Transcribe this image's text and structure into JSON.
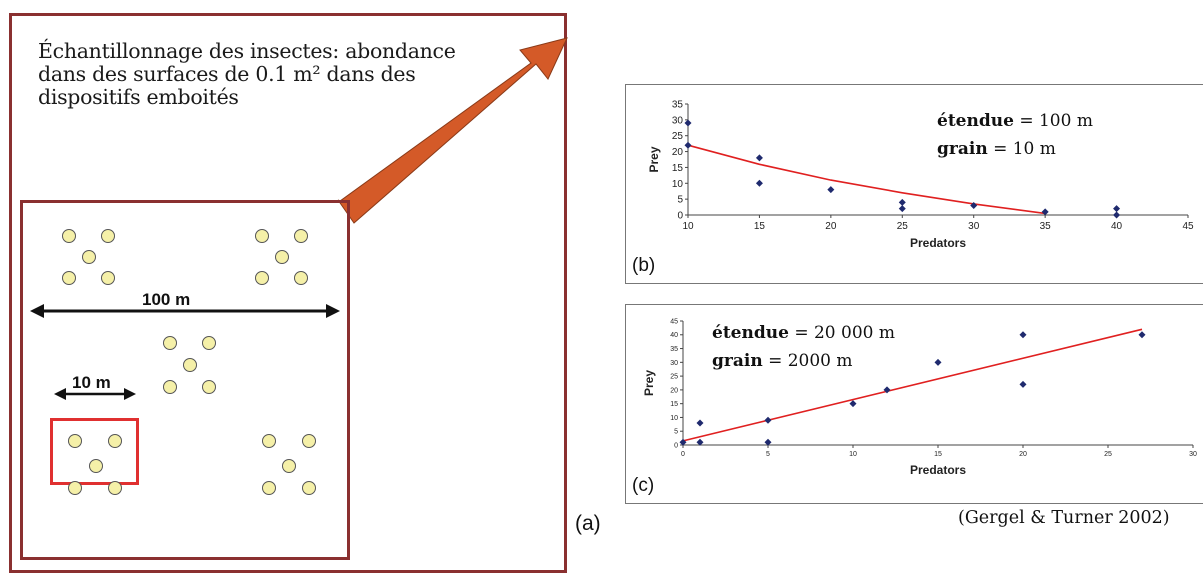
{
  "figure": {
    "intro_text": "Échantillonnage des insectes: abondance dans des surfaces de 0.1 m² dans des dispositifs emboités",
    "extent_label": "100 m",
    "grain_label": "10 m",
    "panel_a_label": "(a)",
    "citation": "(Gergel & Turner 2002)",
    "colors": {
      "frame": "#8a3030",
      "quadrat": "#e03030",
      "arrow": "#d45a28",
      "circle_fill": "#f5f0a8",
      "point": "#1f2a6e",
      "trend": "#e02020"
    }
  },
  "panel_b": {
    "letter": "(b)",
    "etendue_word": "étendue",
    "etendue_value": " = 100 m",
    "grain_word": "grain",
    "grain_value": " = 10 m"
  },
  "panel_c": {
    "letter": "(c)",
    "etendue_word": "étendue",
    "etendue_value": " = 20 000 m",
    "grain_word": "grain",
    "grain_value": " = 2000 m"
  },
  "chart_data": [
    {
      "type": "scatter",
      "xlabel": "Predators",
      "ylabel": "Prey",
      "xlim": [
        10,
        45
      ],
      "ylim": [
        0,
        35
      ],
      "xticks": [
        10,
        15,
        20,
        25,
        30,
        35,
        40,
        45
      ],
      "yticks": [
        0,
        5,
        10,
        15,
        20,
        25,
        30,
        35
      ],
      "points": [
        [
          10,
          29
        ],
        [
          10,
          22
        ],
        [
          15,
          18
        ],
        [
          15,
          10
        ],
        [
          20,
          8
        ],
        [
          25,
          4
        ],
        [
          25,
          2
        ],
        [
          30,
          3
        ],
        [
          35,
          1
        ],
        [
          40,
          2
        ],
        [
          40,
          0
        ]
      ],
      "trendline": {
        "kind": "curve",
        "points": [
          [
            10,
            22
          ],
          [
            15,
            16
          ],
          [
            20,
            11
          ],
          [
            25,
            7
          ],
          [
            30,
            3.5
          ],
          [
            35,
            0.5
          ]
        ]
      }
    },
    {
      "type": "scatter",
      "xlabel": "Predators",
      "ylabel": "Prey",
      "xlim": [
        0,
        30
      ],
      "ylim": [
        0,
        45
      ],
      "xticks": [
        0,
        5,
        10,
        15,
        20,
        25,
        30
      ],
      "yticks": [
        0,
        5,
        10,
        15,
        20,
        25,
        30,
        35,
        40,
        45
      ],
      "points": [
        [
          0,
          1
        ],
        [
          1,
          8
        ],
        [
          1,
          1
        ],
        [
          5,
          9
        ],
        [
          5,
          1
        ],
        [
          10,
          15
        ],
        [
          12,
          20
        ],
        [
          15,
          30
        ],
        [
          20,
          40
        ],
        [
          20,
          22
        ],
        [
          27,
          40
        ]
      ],
      "trendline": {
        "kind": "linear",
        "points": [
          [
            0,
            1.5
          ],
          [
            27,
            42
          ]
        ]
      }
    }
  ]
}
